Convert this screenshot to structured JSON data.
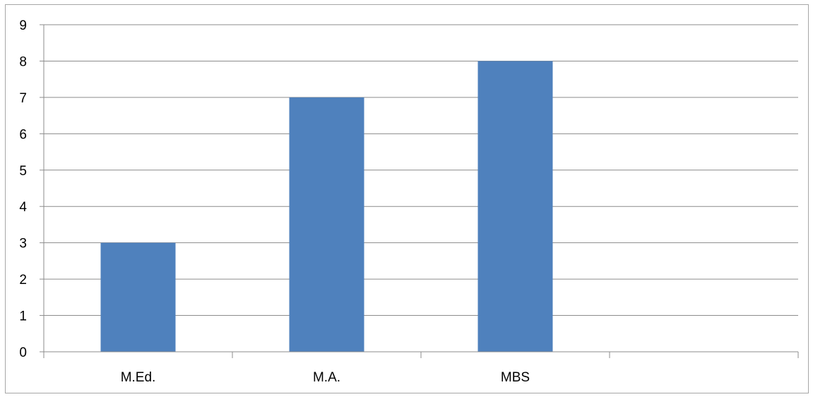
{
  "chart_data": {
    "type": "bar",
    "categories": [
      "M.Ed.",
      "M.A.",
      "MBS",
      ""
    ],
    "values": [
      3,
      7,
      8,
      null
    ],
    "ylim": [
      0,
      9
    ],
    "yticks": [
      0,
      1,
      2,
      3,
      4,
      5,
      6,
      7,
      8,
      9
    ],
    "grid": true,
    "legend": "none",
    "bar_color": "#4f81bd",
    "grid_color": "#8c8c8c",
    "axis_color": "#8c8c8c"
  }
}
